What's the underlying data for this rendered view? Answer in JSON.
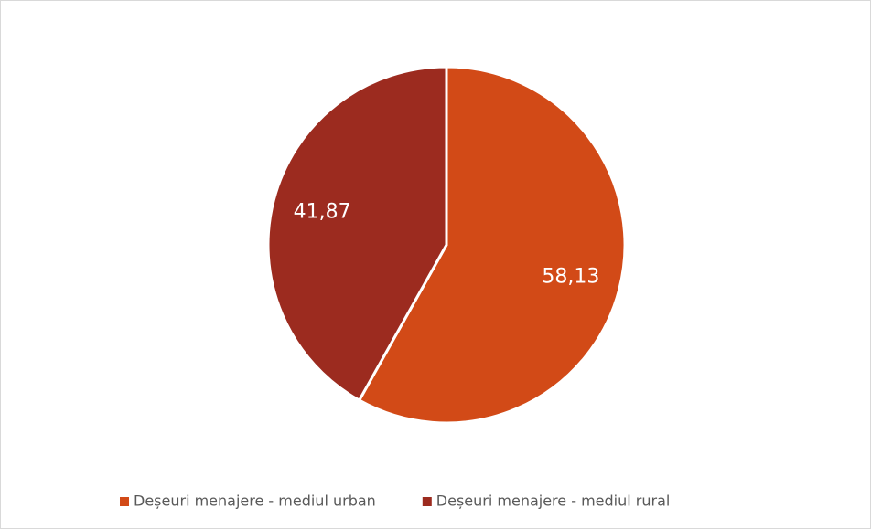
{
  "chart_data": {
    "type": "pie",
    "categories": [
      "Deșeuri menajere - mediul urban",
      "Deșeuri menajere - mediul rural"
    ],
    "values": [
      58.13,
      41.87
    ],
    "value_labels": [
      "58,13",
      "41,87"
    ],
    "colors": [
      "#d24a17",
      "#9c2b1f"
    ],
    "legend": "bottom"
  }
}
